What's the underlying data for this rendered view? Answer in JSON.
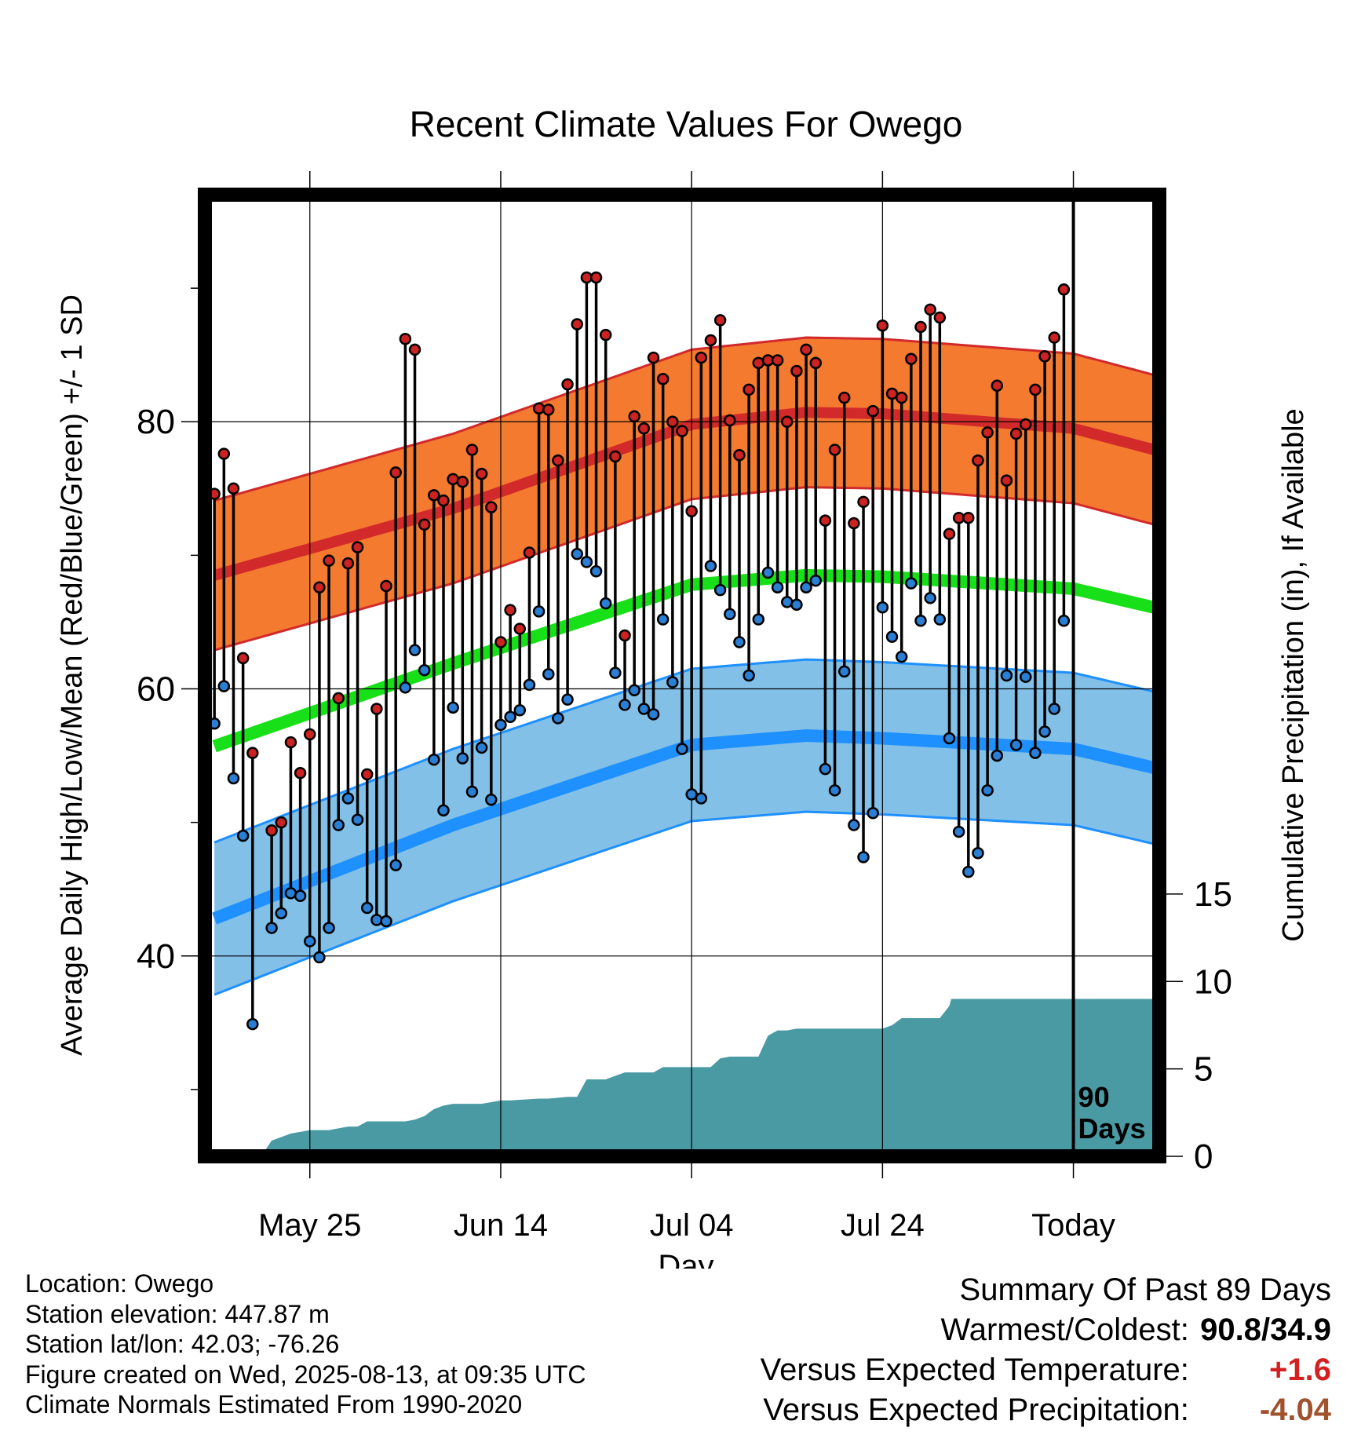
{
  "chart_data": {
    "type": "line",
    "title": "Recent Climate Values For Owego",
    "xlabel": "Day",
    "ylabel": "Average Daily High/Low/Mean (Red/Blue/Green) +/- 1 SD",
    "y2label": "Cumulative Precipitation (in), If Available",
    "x_tick_labels": [
      "May 25",
      "Jun 14",
      "Jul 04",
      "Jul 24",
      "Today"
    ],
    "x_tick_days": [
      10,
      30,
      50,
      70,
      90
    ],
    "x_range": [
      -1,
      99
    ],
    "ylim": [
      25,
      97
    ],
    "y_ticks": [
      40,
      60,
      80
    ],
    "y2lim": [
      0,
      55
    ],
    "y2_ticks": [
      0,
      5,
      10,
      15
    ],
    "today_label": "90 Days",
    "colors": {
      "high_band": "#f47a30",
      "high_line": "#d22a2a",
      "low_band": "#82c0e8",
      "low_line": "#1e90ff",
      "mean": "#18e018",
      "precip": "#4a9aa4",
      "high_marker": "#cc2222",
      "low_marker": "#2a7fd4"
    },
    "normal_high": {
      "days": [
        0,
        25,
        50,
        62,
        70,
        90,
        99
      ],
      "values": [
        68.5,
        73.5,
        79.8,
        80.7,
        80.6,
        79.5,
        77.8
      ]
    },
    "normal_high_sd": 5.6,
    "normal_low": {
      "days": [
        0,
        25,
        50,
        62,
        70,
        90,
        99
      ],
      "values": [
        42.8,
        49.8,
        55.8,
        56.5,
        56.3,
        55.5,
        54.0
      ]
    },
    "normal_low_sd": 5.7,
    "normal_mean": {
      "days": [
        0,
        25,
        50,
        62,
        70,
        90,
        99
      ],
      "values": [
        55.7,
        61.9,
        67.8,
        68.5,
        68.4,
        67.5,
        66.0
      ]
    },
    "daily": [
      {
        "day": 0,
        "high": 74.6,
        "low": 57.4
      },
      {
        "day": 1,
        "high": 77.6,
        "low": 60.2
      },
      {
        "day": 2,
        "high": 75.0,
        "low": 53.3
      },
      {
        "day": 3,
        "high": 62.3,
        "low": 49.0
      },
      {
        "day": 4,
        "high": 55.2,
        "low": 34.9
      },
      {
        "day": 6,
        "high": 49.4,
        "low": 42.1
      },
      {
        "day": 7,
        "high": 50.0,
        "low": 43.2
      },
      {
        "day": 8,
        "high": 56.0,
        "low": 44.7
      },
      {
        "day": 9,
        "high": 53.7,
        "low": 44.5
      },
      {
        "day": 10,
        "high": 56.6,
        "low": 41.1
      },
      {
        "day": 11,
        "high": 67.6,
        "low": 39.9
      },
      {
        "day": 12,
        "high": 69.6,
        "low": 42.1
      },
      {
        "day": 13,
        "high": 59.3,
        "low": 49.8
      },
      {
        "day": 14,
        "high": 69.4,
        "low": 51.8
      },
      {
        "day": 15,
        "high": 70.6,
        "low": 50.2
      },
      {
        "day": 16,
        "high": 53.6,
        "low": 43.6
      },
      {
        "day": 17,
        "high": 58.5,
        "low": 42.7
      },
      {
        "day": 18,
        "high": 67.7,
        "low": 42.6
      },
      {
        "day": 19,
        "high": 76.2,
        "low": 46.8
      },
      {
        "day": 20,
        "high": 86.2,
        "low": 60.1
      },
      {
        "day": 21,
        "high": 85.4,
        "low": 62.9
      },
      {
        "day": 22,
        "high": 72.3,
        "low": 61.4
      },
      {
        "day": 23,
        "high": 74.5,
        "low": 54.7
      },
      {
        "day": 24,
        "high": 74.1,
        "low": 50.9
      },
      {
        "day": 25,
        "high": 75.7,
        "low": 58.6
      },
      {
        "day": 26,
        "high": 75.5,
        "low": 54.8
      },
      {
        "day": 27,
        "high": 77.9,
        "low": 52.3
      },
      {
        "day": 28,
        "high": 76.1,
        "low": 55.6
      },
      {
        "day": 29,
        "high": 73.6,
        "low": 51.7
      },
      {
        "day": 30,
        "high": 63.5,
        "low": 57.3
      },
      {
        "day": 31,
        "high": 65.9,
        "low": 57.9
      },
      {
        "day": 32,
        "high": 64.5,
        "low": 58.4
      },
      {
        "day": 33,
        "high": 70.2,
        "low": 60.3
      },
      {
        "day": 34,
        "high": 81.0,
        "low": 65.8
      },
      {
        "day": 35,
        "high": 80.9,
        "low": 61.1
      },
      {
        "day": 36,
        "high": 77.1,
        "low": 57.8
      },
      {
        "day": 37,
        "high": 82.8,
        "low": 59.2
      },
      {
        "day": 38,
        "high": 87.3,
        "low": 70.1
      },
      {
        "day": 39,
        "high": 90.8,
        "low": 69.5
      },
      {
        "day": 40,
        "high": 90.8,
        "low": 68.8
      },
      {
        "day": 41,
        "high": 86.5,
        "low": 66.4
      },
      {
        "day": 42,
        "high": 77.4,
        "low": 61.2
      },
      {
        "day": 43,
        "high": 64.0,
        "low": 58.8
      },
      {
        "day": 44,
        "high": 80.4,
        "low": 59.9
      },
      {
        "day": 45,
        "high": 79.5,
        "low": 58.5
      },
      {
        "day": 46,
        "high": 84.8,
        "low": 58.1
      },
      {
        "day": 47,
        "high": 83.2,
        "low": 65.2
      },
      {
        "day": 48,
        "high": 80.0,
        "low": 60.5
      },
      {
        "day": 49,
        "high": 79.3,
        "low": 55.5
      },
      {
        "day": 50,
        "high": 73.3,
        "low": 52.1
      },
      {
        "day": 51,
        "high": 84.8,
        "low": 51.8
      },
      {
        "day": 52,
        "high": 86.1,
        "low": 69.2
      },
      {
        "day": 53,
        "high": 87.6,
        "low": 67.4
      },
      {
        "day": 54,
        "high": 80.1,
        "low": 65.6
      },
      {
        "day": 55,
        "high": 77.5,
        "low": 63.5
      },
      {
        "day": 56,
        "high": 82.4,
        "low": 61.0
      },
      {
        "day": 57,
        "high": 84.4,
        "low": 65.2
      },
      {
        "day": 58,
        "high": 84.6,
        "low": 68.7
      },
      {
        "day": 59,
        "high": 84.6,
        "low": 67.6
      },
      {
        "day": 60,
        "high": 80.0,
        "low": 66.5
      },
      {
        "day": 61,
        "high": 83.8,
        "low": 66.3
      },
      {
        "day": 62,
        "high": 85.4,
        "low": 67.6
      },
      {
        "day": 63,
        "high": 84.4,
        "low": 68.1
      },
      {
        "day": 64,
        "high": 72.6,
        "low": 54.0
      },
      {
        "day": 65,
        "high": 77.9,
        "low": 52.4
      },
      {
        "day": 66,
        "high": 81.8,
        "low": 61.3
      },
      {
        "day": 67,
        "high": 72.4,
        "low": 49.8
      },
      {
        "day": 68,
        "high": 74.0,
        "low": 47.4
      },
      {
        "day": 69,
        "high": 80.8,
        "low": 50.7
      },
      {
        "day": 70,
        "high": 87.2,
        "low": 66.1
      },
      {
        "day": 71,
        "high": 82.1,
        "low": 63.9
      },
      {
        "day": 72,
        "high": 81.8,
        "low": 62.4
      },
      {
        "day": 73,
        "high": 84.7,
        "low": 67.9
      },
      {
        "day": 74,
        "high": 87.1,
        "low": 65.1
      },
      {
        "day": 75,
        "high": 88.4,
        "low": 66.8
      },
      {
        "day": 76,
        "high": 87.8,
        "low": 65.2
      },
      {
        "day": 77,
        "high": 71.6,
        "low": 56.3
      },
      {
        "day": 78,
        "high": 72.8,
        "low": 49.3
      },
      {
        "day": 79,
        "high": 72.8,
        "low": 46.3
      },
      {
        "day": 80,
        "high": 77.1,
        "low": 47.7
      },
      {
        "day": 81,
        "high": 79.2,
        "low": 52.4
      },
      {
        "day": 82,
        "high": 82.7,
        "low": 55.0
      },
      {
        "day": 83,
        "high": 75.6,
        "low": 61.0
      },
      {
        "day": 84,
        "high": 79.1,
        "low": 55.8
      },
      {
        "day": 85,
        "high": 79.8,
        "low": 60.9
      },
      {
        "day": 86,
        "high": 82.4,
        "low": 55.2
      },
      {
        "day": 87,
        "high": 84.9,
        "low": 56.8
      },
      {
        "day": 88,
        "high": 86.3,
        "low": 58.5
      },
      {
        "day": 89,
        "high": 89.9,
        "low": 65.1
      }
    ],
    "cumulative_precip": {
      "days": [
        0,
        1,
        1.8,
        2,
        5,
        5.5,
        6,
        7,
        8,
        9,
        10,
        11,
        12,
        13,
        14,
        15,
        16,
        17,
        18,
        19,
        20,
        21,
        22,
        23,
        24,
        25,
        27,
        28,
        29,
        30,
        31,
        34,
        35,
        37,
        38,
        39,
        40,
        41,
        42,
        43,
        44,
        45,
        46,
        47,
        48,
        49,
        50,
        51,
        52,
        53,
        54,
        55,
        56,
        57,
        58,
        59,
        60,
        61,
        62,
        64,
        65,
        66,
        67,
        68,
        69,
        70,
        71,
        72,
        73,
        74,
        75,
        76,
        77,
        77.2,
        80,
        81,
        85,
        88,
        89,
        90,
        99
      ],
      "values": [
        0,
        0,
        0.1,
        0.1,
        0.1,
        0.5,
        0.9,
        1.1,
        1.3,
        1.4,
        1.5,
        1.5,
        1.5,
        1.6,
        1.7,
        1.7,
        2.0,
        2.0,
        2.0,
        2.0,
        2.0,
        2.1,
        2.3,
        2.7,
        2.9,
        3.0,
        3.0,
        3.0,
        3.1,
        3.2,
        3.2,
        3.3,
        3.3,
        3.4,
        3.4,
        4.4,
        4.4,
        4.4,
        4.6,
        4.8,
        4.8,
        4.8,
        4.8,
        5.1,
        5.1,
        5.1,
        5.1,
        5.1,
        5.1,
        5.6,
        5.7,
        5.7,
        5.7,
        5.7,
        6.9,
        7.2,
        7.2,
        7.3,
        7.3,
        7.3,
        7.3,
        7.3,
        7.3,
        7.3,
        7.3,
        7.3,
        7.5,
        7.9,
        7.9,
        7.9,
        7.9,
        7.9,
        8.6,
        9.0,
        9.0,
        9.0,
        9.0,
        9.0,
        9.0,
        9.0,
        9.0
      ]
    }
  },
  "footer": {
    "location": "Location: Owego",
    "elevation": "Station elevation: 447.87 m",
    "latlon": "Station lat/lon: 42.03; -76.26",
    "created": "Figure created on Wed, 2025-08-13, at 09:35 UTC",
    "normals": "Climate Normals Estimated From 1990-2020"
  },
  "summary": {
    "title": "Summary Of Past 89 Days",
    "warm_label": "Warmest/Coldest:",
    "warm_value": "90.8/34.9",
    "temp_label": "Versus Expected Temperature:",
    "temp_value": "+1.6",
    "precip_label": "Versus Expected Precipitation:",
    "precip_value": "-4.04"
  }
}
